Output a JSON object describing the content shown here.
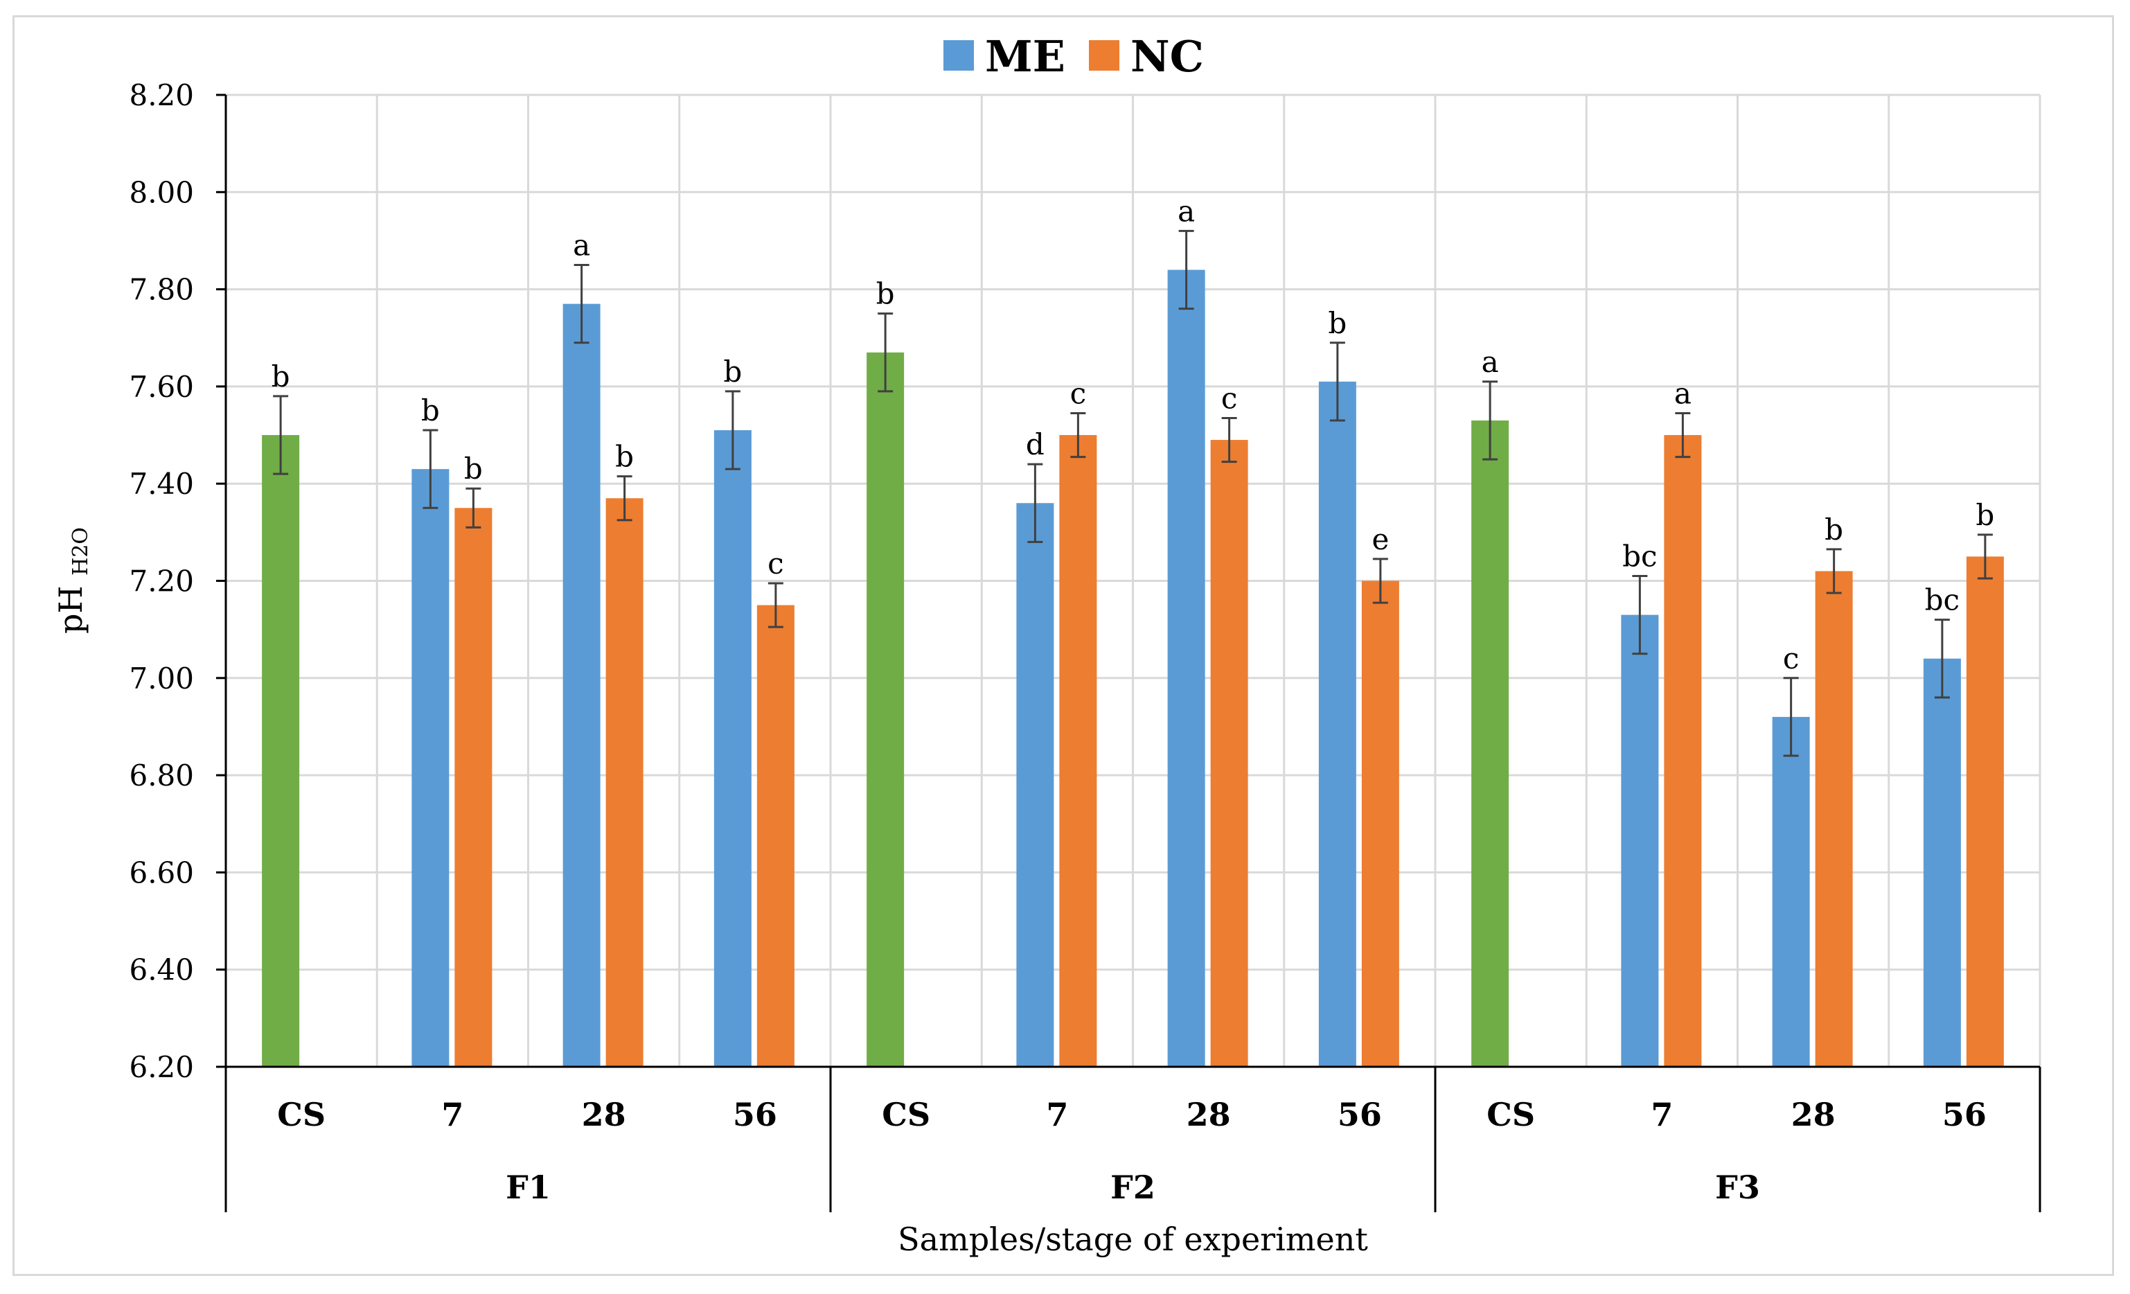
{
  "chart_data": {
    "type": "bar",
    "title": "",
    "xlabel": "Samples/stage of experiment",
    "ylabel": "pH",
    "ylabel_subscript": "H2O",
    "ylim": [
      6.2,
      8.2
    ],
    "ytick_step": 0.2,
    "grid": true,
    "legend": {
      "position": "top-center",
      "entries": [
        "ME",
        "NC"
      ]
    },
    "colors": {
      "ME": "#5b9bd5",
      "NC": "#ed7d31",
      "CS": "#70ad47",
      "error": "#404040",
      "grid": "#d9d9d9"
    },
    "groups": [
      {
        "name": "F1",
        "categories": [
          {
            "label": "CS",
            "cs": 7.5,
            "cs_err": 0.08,
            "cs_sig": "b"
          },
          {
            "label": "7",
            "me": 7.43,
            "me_err": 0.08,
            "me_sig": "b",
            "nc": 7.35,
            "nc_err": 0.04,
            "nc_sig": "b"
          },
          {
            "label": "28",
            "me": 7.77,
            "me_err": 0.08,
            "me_sig": "a",
            "nc": 7.37,
            "nc_err": 0.045,
            "nc_sig": "b"
          },
          {
            "label": "56",
            "me": 7.51,
            "me_err": 0.08,
            "me_sig": "b",
            "nc": 7.15,
            "nc_err": 0.045,
            "nc_sig": "c"
          }
        ]
      },
      {
        "name": "F2",
        "categories": [
          {
            "label": "CS",
            "cs": 7.67,
            "cs_err": 0.08,
            "cs_sig": "b"
          },
          {
            "label": "7",
            "me": 7.36,
            "me_err": 0.08,
            "me_sig": "d",
            "nc": 7.5,
            "nc_err": 0.045,
            "nc_sig": "c"
          },
          {
            "label": "28",
            "me": 7.84,
            "me_err": 0.08,
            "me_sig": "a",
            "nc": 7.49,
            "nc_err": 0.045,
            "nc_sig": "c"
          },
          {
            "label": "56",
            "me": 7.61,
            "me_err": 0.08,
            "me_sig": "b",
            "nc": 7.2,
            "nc_err": 0.045,
            "nc_sig": "e"
          }
        ]
      },
      {
        "name": "F3",
        "categories": [
          {
            "label": "CS",
            "cs": 7.53,
            "cs_err": 0.08,
            "cs_sig": "a"
          },
          {
            "label": "7",
            "me": 7.13,
            "me_err": 0.08,
            "me_sig": "bc",
            "nc": 7.5,
            "nc_err": 0.045,
            "nc_sig": "a"
          },
          {
            "label": "28",
            "me": 6.92,
            "me_err": 0.08,
            "me_sig": "c",
            "nc": 7.22,
            "nc_err": 0.045,
            "nc_sig": "b"
          },
          {
            "label": "56",
            "me": 7.04,
            "me_err": 0.08,
            "me_sig": "bc",
            "nc": 7.25,
            "nc_err": 0.045,
            "nc_sig": "b"
          }
        ]
      }
    ]
  }
}
